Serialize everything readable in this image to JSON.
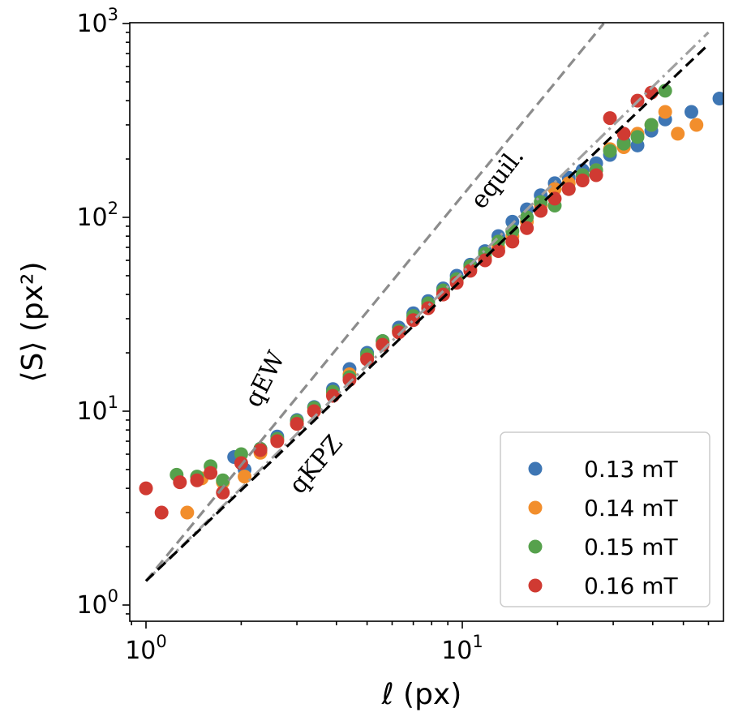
{
  "chart_data": {
    "type": "scatter",
    "xscale": "log",
    "yscale": "log",
    "xlim": [
      0.78,
      90
    ],
    "ylim": [
      0.9,
      1000
    ],
    "grid": false,
    "legend_placement": "bottom-right",
    "xlabel": "ℓ   (px)",
    "ylabel": "⟨S⟩   (px²)",
    "x_ticks": [
      {
        "value": 1,
        "mantissa": "10",
        "exp": "0"
      },
      {
        "value": 10,
        "mantissa": "10",
        "exp": "1"
      }
    ],
    "y_ticks": [
      {
        "value": 1,
        "mantissa": "10",
        "exp": "0"
      },
      {
        "value": 10,
        "mantissa": "10",
        "exp": "1"
      },
      {
        "value": 100,
        "mantissa": "10",
        "exp": "2"
      },
      {
        "value": 1000,
        "mantissa": "10",
        "exp": "3"
      }
    ],
    "reference_lines": [
      {
        "label": "qEW",
        "style": "dashed",
        "color": "#8c8c8c",
        "points": [
          [
            1,
            1.33
          ],
          [
            28,
            1000
          ]
        ],
        "label_at": [
          2.5,
          14
        ],
        "label_angle": -63
      },
      {
        "label": "equil.",
        "style": "dashdot",
        "color": "#a0a0a0",
        "points": [
          [
            1,
            1.33
          ],
          [
            60,
            900
          ]
        ],
        "label_at": [
          13.5,
          150
        ],
        "label_angle": -52
      },
      {
        "label": "qKPZ",
        "style": "dashed",
        "color": "#000000",
        "points": [
          [
            1,
            1.33
          ],
          [
            60,
            780
          ]
        ],
        "label_at": [
          3.6,
          5.0
        ],
        "label_angle": -50
      }
    ],
    "series": [
      {
        "name": "0.13 mT",
        "color": "#3e76b4",
        "points": [
          [
            1.9,
            5.8
          ],
          [
            2.05,
            5.0
          ],
          [
            2.3,
            6.4
          ],
          [
            2.6,
            7.4
          ],
          [
            3.0,
            9.0
          ],
          [
            3.4,
            10.5
          ],
          [
            3.9,
            13.0
          ],
          [
            4.4,
            16.5
          ],
          [
            5.0,
            20.0
          ],
          [
            5.6,
            23.0
          ],
          [
            6.3,
            27.0
          ],
          [
            7.0,
            32.0
          ],
          [
            7.8,
            37.0
          ],
          [
            8.7,
            43.0
          ],
          [
            9.6,
            50.0
          ],
          [
            10.6,
            57.0
          ],
          [
            11.8,
            67.0
          ],
          [
            13.0,
            80.0
          ],
          [
            14.4,
            95.0
          ],
          [
            16.0,
            110.0
          ],
          [
            17.7,
            130.0
          ],
          [
            19.6,
            150.0
          ],
          [
            21.7,
            160.0
          ],
          [
            24.0,
            175.0
          ],
          [
            26.5,
            190.0
          ],
          [
            29.3,
            210.0
          ],
          [
            32.4,
            245.0
          ],
          [
            35.8,
            235.0
          ],
          [
            39.6,
            280.0
          ],
          [
            43.8,
            320.0
          ],
          [
            53.0,
            350.0
          ],
          [
            65.0,
            410.0
          ]
        ]
      },
      {
        "name": "0.14 mT",
        "color": "#f28e2c",
        "points": [
          [
            1.35,
            3.0
          ],
          [
            1.5,
            4.5
          ],
          [
            1.75,
            4.3
          ],
          [
            2.05,
            4.6
          ],
          [
            2.3,
            6.1
          ],
          [
            2.6,
            7.1
          ],
          [
            3.0,
            8.6
          ],
          [
            3.4,
            10.0
          ],
          [
            3.9,
            12.3
          ],
          [
            4.4,
            15.5
          ],
          [
            5.0,
            19.0
          ],
          [
            5.6,
            22.5
          ],
          [
            6.3,
            26.0
          ],
          [
            7.0,
            30.0
          ],
          [
            7.8,
            35.0
          ],
          [
            8.7,
            41.0
          ],
          [
            9.6,
            47.0
          ],
          [
            10.6,
            54.0
          ],
          [
            11.8,
            62.0
          ],
          [
            13.0,
            70.0
          ],
          [
            14.4,
            80.0
          ],
          [
            16.0,
            95.0
          ],
          [
            17.7,
            115.0
          ],
          [
            19.6,
            140.0
          ],
          [
            21.7,
            150.0
          ],
          [
            24.0,
            165.0
          ],
          [
            26.5,
            175.0
          ],
          [
            29.3,
            225.0
          ],
          [
            32.4,
            230.0
          ],
          [
            35.8,
            270.0
          ],
          [
            39.6,
            300.0
          ],
          [
            43.8,
            350.0
          ],
          [
            48.0,
            270.0
          ],
          [
            55.0,
            300.0
          ]
        ]
      },
      {
        "name": "0.15 mT",
        "color": "#56a14c",
        "points": [
          [
            1.25,
            4.7
          ],
          [
            1.45,
            4.6
          ],
          [
            1.6,
            5.2
          ],
          [
            1.75,
            4.4
          ],
          [
            2.0,
            6.0
          ],
          [
            2.3,
            6.4
          ],
          [
            2.6,
            7.2
          ],
          [
            3.0,
            8.9
          ],
          [
            3.4,
            10.4
          ],
          [
            3.9,
            12.6
          ],
          [
            4.4,
            15.0
          ],
          [
            5.0,
            19.5
          ],
          [
            5.6,
            23.0
          ],
          [
            6.3,
            26.0
          ],
          [
            7.0,
            31.0
          ],
          [
            7.8,
            36.0
          ],
          [
            8.7,
            42.0
          ],
          [
            9.6,
            48.0
          ],
          [
            10.6,
            56.0
          ],
          [
            11.8,
            65.0
          ],
          [
            13.0,
            75.0
          ],
          [
            14.4,
            85.0
          ],
          [
            16.0,
            100.0
          ],
          [
            17.7,
            120.0
          ],
          [
            19.6,
            115.0
          ],
          [
            21.7,
            140.0
          ],
          [
            24.0,
            165.0
          ],
          [
            26.5,
            175.0
          ],
          [
            29.3,
            220.0
          ],
          [
            32.4,
            240.0
          ],
          [
            35.8,
            260.0
          ],
          [
            39.6,
            300.0
          ],
          [
            43.8,
            450.0
          ]
        ]
      },
      {
        "name": "0.16 mT",
        "color": "#d03a32",
        "points": [
          [
            1.0,
            4.0
          ],
          [
            1.12,
            3.0
          ],
          [
            1.28,
            4.3
          ],
          [
            1.45,
            4.4
          ],
          [
            1.6,
            4.8
          ],
          [
            1.75,
            3.8
          ],
          [
            2.0,
            5.4
          ],
          [
            2.3,
            6.3
          ],
          [
            2.6,
            7.0
          ],
          [
            3.0,
            8.6
          ],
          [
            3.4,
            10.0
          ],
          [
            3.9,
            12.0
          ],
          [
            4.4,
            14.5
          ],
          [
            5.0,
            18.5
          ],
          [
            5.6,
            22.0
          ],
          [
            6.3,
            25.5
          ],
          [
            7.0,
            29.5
          ],
          [
            7.8,
            34.0
          ],
          [
            8.7,
            40.0
          ],
          [
            9.6,
            46.0
          ],
          [
            10.6,
            53.0
          ],
          [
            11.8,
            60.0
          ],
          [
            13.0,
            67.0
          ],
          [
            14.4,
            75.0
          ],
          [
            16.0,
            88.0
          ],
          [
            17.7,
            108.0
          ],
          [
            19.6,
            125.0
          ],
          [
            21.7,
            140.0
          ],
          [
            24.0,
            155.0
          ],
          [
            26.5,
            165.0
          ],
          [
            29.3,
            325.0
          ],
          [
            32.4,
            270.0
          ],
          [
            35.8,
            400.0
          ],
          [
            39.6,
            440.0
          ]
        ]
      }
    ]
  }
}
